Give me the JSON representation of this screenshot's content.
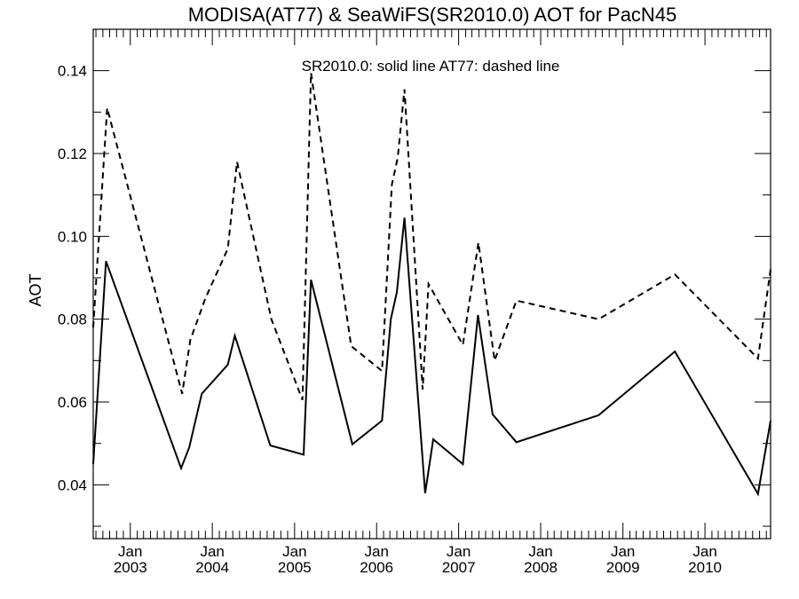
{
  "chart_data": {
    "type": "line",
    "title": "MODISA(AT77) & SeaWiFS(SR2010.0)  AOT for PacN45",
    "annotation": "SR2010.0: solid line   AT77: dashed line",
    "ylabel": "AOT",
    "xlabel": "",
    "ylim": [
      0.027,
      0.15
    ],
    "xlim": [
      "2002-07-20",
      "2010-10-20"
    ],
    "y_ticks": [
      "0.04",
      "0.06",
      "0.08",
      "0.10",
      "0.12",
      "0.14"
    ],
    "y_tick_values": [
      0.04,
      0.06,
      0.08,
      0.1,
      0.12,
      0.14
    ],
    "x_ticks": [
      {
        "date": "2003-01-01",
        "month": "Jan",
        "year": "2003"
      },
      {
        "date": "2004-01-01",
        "month": "Jan",
        "year": "2004"
      },
      {
        "date": "2005-01-01",
        "month": "Jan",
        "year": "2005"
      },
      {
        "date": "2006-01-01",
        "month": "Jan",
        "year": "2006"
      },
      {
        "date": "2007-01-01",
        "month": "Jan",
        "year": "2007"
      },
      {
        "date": "2008-01-01",
        "month": "Jan",
        "year": "2008"
      },
      {
        "date": "2009-01-01",
        "month": "Jan",
        "year": "2009"
      },
      {
        "date": "2010-01-01",
        "month": "Jan",
        "year": "2010"
      }
    ],
    "series": [
      {
        "name": "SR2010.0",
        "style": "solid",
        "color": "#000000",
        "points": [
          [
            "2002-07-20",
            0.045
          ],
          [
            "2002-09-15",
            0.094
          ],
          [
            "2003-08-15",
            0.044
          ],
          [
            "2003-09-20",
            0.049
          ],
          [
            "2003-11-15",
            0.062
          ],
          [
            "2004-03-10",
            0.069
          ],
          [
            "2004-04-10",
            0.076
          ],
          [
            "2004-09-15",
            0.0495
          ],
          [
            "2005-02-10",
            0.0473
          ],
          [
            "2005-03-15",
            0.0895
          ],
          [
            "2005-09-15",
            0.0498
          ],
          [
            "2006-01-25",
            0.0555
          ],
          [
            "2006-03-05",
            0.08
          ],
          [
            "2006-04-01",
            0.0865
          ],
          [
            "2006-05-05",
            0.1045
          ],
          [
            "2006-08-05",
            0.038
          ],
          [
            "2006-09-10",
            0.051
          ],
          [
            "2007-01-20",
            0.045
          ],
          [
            "2007-03-28",
            0.081
          ],
          [
            "2007-06-01",
            0.057
          ],
          [
            "2007-09-15",
            0.0503
          ],
          [
            "2008-09-15",
            0.0568
          ],
          [
            "2009-08-20",
            0.0722
          ],
          [
            "2010-08-25",
            0.0378
          ],
          [
            "2010-10-20",
            0.0555
          ]
        ]
      },
      {
        "name": "AT77",
        "style": "dashed",
        "color": "#000000",
        "points": [
          [
            "2002-07-20",
            0.078
          ],
          [
            "2002-09-20",
            0.131
          ],
          [
            "2003-08-20",
            0.062
          ],
          [
            "2003-09-25",
            0.075
          ],
          [
            "2003-12-01",
            0.085
          ],
          [
            "2004-03-10",
            0.097
          ],
          [
            "2004-04-20",
            0.118
          ],
          [
            "2004-09-20",
            0.08
          ],
          [
            "2005-02-05",
            0.0605
          ],
          [
            "2005-03-15",
            0.1395
          ],
          [
            "2005-09-10",
            0.0735
          ],
          [
            "2006-01-25",
            0.0675
          ],
          [
            "2006-03-10",
            0.1125
          ],
          [
            "2006-04-05",
            0.119
          ],
          [
            "2006-05-05",
            0.1355
          ],
          [
            "2006-07-25",
            0.063
          ],
          [
            "2006-08-20",
            0.0885
          ],
          [
            "2007-01-20",
            0.0738
          ],
          [
            "2007-03-30",
            0.0985
          ],
          [
            "2007-06-10",
            0.07
          ],
          [
            "2007-09-15",
            0.0845
          ],
          [
            "2008-09-15",
            0.08
          ],
          [
            "2009-08-20",
            0.0908
          ],
          [
            "2010-08-25",
            0.0705
          ],
          [
            "2010-10-20",
            0.092
          ]
        ]
      }
    ]
  }
}
